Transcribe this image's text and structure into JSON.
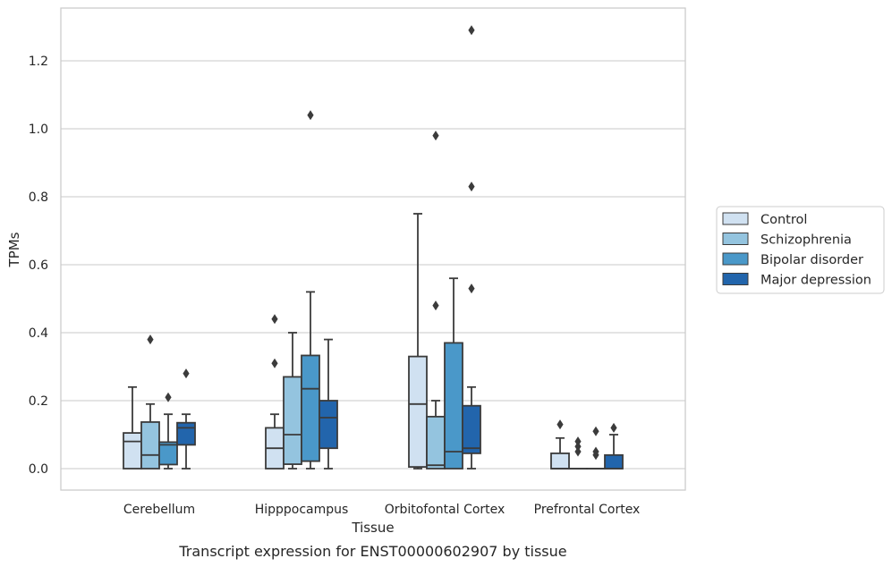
{
  "chart_data": {
    "type": "box",
    "xlabel": "Tissue",
    "ylabel": "TPMs",
    "caption": "Transcript expression for ENST00000602907 by tissue",
    "ylim": [
      -0.065,
      1.36
    ],
    "yticks": [
      0.0,
      0.2,
      0.4,
      0.6,
      0.8,
      1.0,
      1.2
    ],
    "ytick_labels": [
      "0.0",
      "0.2",
      "0.4",
      "0.6",
      "0.8",
      "1.0",
      "1.2"
    ],
    "grid": "horizontal",
    "legend_position": "right",
    "categories": [
      "Cerebellum",
      "Hipppocampus",
      "Orbitofontal Cortex",
      "Prefrontal Cortex"
    ],
    "series": [
      {
        "name": "Control",
        "color": "#d0e1f1",
        "boxes": [
          {
            "whislo": 0.0,
            "q1": 0.0,
            "med": 0.08,
            "q3": 0.105,
            "whishi": 0.24,
            "fliers": []
          },
          {
            "whislo": 0.0,
            "q1": 0.0,
            "med": 0.06,
            "q3": 0.12,
            "whishi": 0.16,
            "fliers": [
              0.31,
              0.44
            ]
          },
          {
            "whislo": 0.0,
            "q1": 0.005,
            "med": 0.19,
            "q3": 0.33,
            "whishi": 0.75,
            "fliers": []
          },
          {
            "whislo": 0.0,
            "q1": 0.0,
            "med": 0.0,
            "q3": 0.045,
            "whishi": 0.09,
            "fliers": [
              0.13
            ]
          }
        ]
      },
      {
        "name": "Schizophrenia",
        "color": "#94c4df",
        "boxes": [
          {
            "whislo": 0.0,
            "q1": 0.0,
            "med": 0.04,
            "q3": 0.137,
            "whishi": 0.19,
            "fliers": [
              0.38
            ]
          },
          {
            "whislo": 0.0,
            "q1": 0.013,
            "med": 0.1,
            "q3": 0.27,
            "whishi": 0.4,
            "fliers": []
          },
          {
            "whislo": 0.0,
            "q1": 0.0,
            "med": 0.01,
            "q3": 0.153,
            "whishi": 0.2,
            "fliers": [
              0.48,
              0.98
            ]
          },
          {
            "whislo": 0.0,
            "q1": 0.0,
            "med": 0.0,
            "q3": 0.0,
            "whishi": 0.0,
            "fliers": [
              0.05,
              0.065,
              0.08
            ]
          }
        ]
      },
      {
        "name": "Bipolar disorder",
        "color": "#4a98c9",
        "boxes": [
          {
            "whislo": 0.0,
            "q1": 0.012,
            "med": 0.07,
            "q3": 0.078,
            "whishi": 0.16,
            "fliers": [
              0.21
            ]
          },
          {
            "whislo": 0.0,
            "q1": 0.022,
            "med": 0.235,
            "q3": 0.333,
            "whishi": 0.52,
            "fliers": [
              1.04
            ]
          },
          {
            "whislo": 0.0,
            "q1": 0.0,
            "med": 0.05,
            "q3": 0.37,
            "whishi": 0.56,
            "fliers": []
          },
          {
            "whislo": 0.0,
            "q1": 0.0,
            "med": 0.0,
            "q3": 0.0,
            "whishi": 0.0,
            "fliers": [
              0.04,
              0.05,
              0.11
            ]
          }
        ]
      },
      {
        "name": "Major depression",
        "color": "#2265ac",
        "boxes": [
          {
            "whislo": 0.0,
            "q1": 0.07,
            "med": 0.12,
            "q3": 0.135,
            "whishi": 0.16,
            "fliers": [
              0.28
            ]
          },
          {
            "whislo": 0.0,
            "q1": 0.06,
            "med": 0.15,
            "q3": 0.2,
            "whishi": 0.38,
            "fliers": []
          },
          {
            "whislo": 0.0,
            "q1": 0.045,
            "med": 0.06,
            "q3": 0.185,
            "whishi": 0.24,
            "fliers": [
              0.53,
              0.83,
              1.29
            ]
          },
          {
            "whislo": 0.0,
            "q1": 0.0,
            "med": 0.0,
            "q3": 0.04,
            "whishi": 0.1,
            "fliers": [
              0.12
            ]
          }
        ]
      }
    ]
  }
}
